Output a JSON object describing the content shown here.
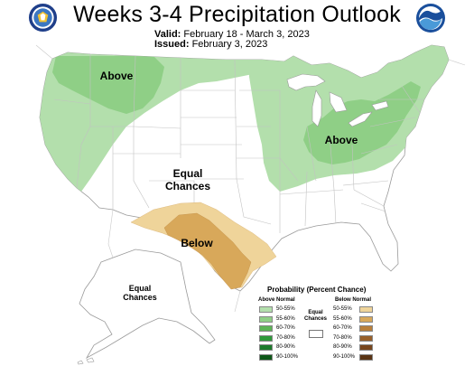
{
  "title": "Weeks 3-4 Precipitation Outlook",
  "valid_label": "Valid:",
  "valid_value": "February 18 - March 3, 2023",
  "issued_label": "Issued:",
  "issued_value": "February 3, 2023",
  "logos": {
    "left": "department-of-commerce-seal",
    "right": "noaa-logo"
  },
  "map_labels": {
    "above_west": "Above",
    "above_east": "Above",
    "equal_line1": "Equal",
    "equal_line2": "Chances",
    "below": "Below",
    "alaska_line1": "Equal",
    "alaska_line2": "Chances"
  },
  "legend": {
    "title": "Probability (Percent Chance)",
    "above_header": "Above Normal",
    "below_header": "Below Normal",
    "equal_line1": "Equal",
    "equal_line2": "Chances",
    "categories": [
      "50-55%",
      "55-60%",
      "60-70%",
      "70-80%",
      "80-90%",
      "90-100%"
    ],
    "above_colors": [
      "#b3dfac",
      "#8fcf86",
      "#5db456",
      "#2f9a3a",
      "#1c7a2b",
      "#0e5718"
    ],
    "below_colors": [
      "#efd49a",
      "#d8a85a",
      "#b97f3b",
      "#98602a",
      "#77461d",
      "#5a3415"
    ]
  },
  "colors": {
    "above_light": "#b3dfac",
    "above_medium": "#8fcf86",
    "below_light": "#efd49a",
    "below_medium": "#d8a85a",
    "border": "#bfbfbf"
  }
}
